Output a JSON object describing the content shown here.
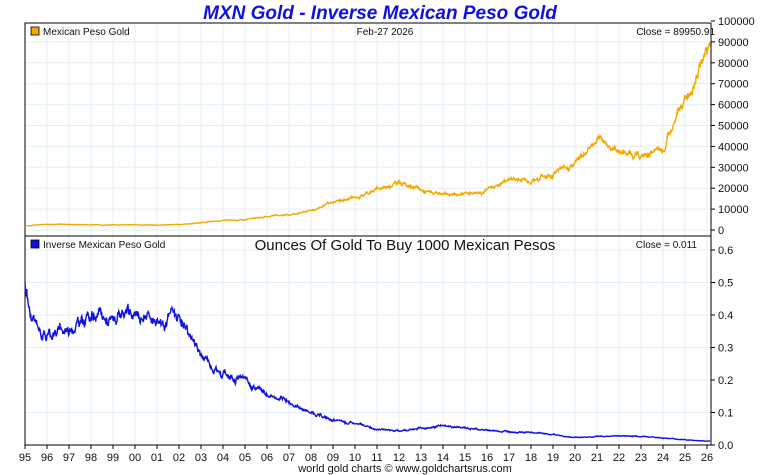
{
  "chart_data": [
    {
      "type": "line",
      "title": "MXN Gold - Inverse Mexican Peso Gold",
      "legend": "Mexican Peso Gold",
      "legend_position": "top-left",
      "date_label": "Feb-27  2026",
      "close_label": "Close = 89950.91",
      "color": "#f5a800",
      "ylim": [
        0,
        100000
      ],
      "yticks": [
        "100000",
        "90000",
        "80000",
        "70000",
        "60000",
        "50000",
        "40000",
        "30000",
        "20000",
        "10000",
        "0"
      ],
      "ytick_values": [
        100000,
        90000,
        80000,
        70000,
        60000,
        50000,
        40000,
        30000,
        20000,
        10000,
        0
      ],
      "grid": true,
      "x": [
        1995,
        1996,
        1997,
        1998,
        1999,
        2000,
        2001,
        2002,
        2003,
        2004,
        2005,
        2006,
        2007,
        2008,
        2009,
        2010,
        2011,
        2012,
        2013,
        2014,
        2015,
        2016,
        2017,
        2018,
        2019,
        2020,
        2021,
        2022,
        2023,
        2024,
        2025,
        2026.15
      ],
      "values": [
        2000,
        2800,
        2700,
        2500,
        2400,
        2500,
        2400,
        2600,
        3500,
        4500,
        4900,
        6500,
        7300,
        9500,
        13000,
        15500,
        19500,
        23000,
        19000,
        16500,
        17500,
        19000,
        24500,
        24000,
        27000,
        32000,
        43000,
        38000,
        35000,
        38000,
        62000,
        89950.91
      ]
    },
    {
      "type": "line",
      "title": "Ounces Of Gold To Buy 1000 Mexican Pesos",
      "legend": "Inverse Mexican Peso Gold",
      "legend_position": "top-left",
      "close_label": "Close = 0.011",
      "color": "#1010e0",
      "ylim": [
        0,
        0.65
      ],
      "yticks": [
        "0.6",
        "0.5",
        "0.4",
        "0.3",
        "0.2",
        "0.1",
        "0.0"
      ],
      "ytick_values": [
        0.6,
        0.5,
        0.4,
        0.3,
        0.2,
        0.1,
        0.0
      ],
      "grid": true,
      "x": [
        1995,
        1995.3,
        1996,
        1997,
        1998,
        1999,
        2000,
        2001,
        2002,
        2003,
        2004,
        2005,
        2006,
        2007,
        2008,
        2009,
        2010,
        2011,
        2012,
        2013,
        2014,
        2015,
        2016,
        2017,
        2018,
        2019,
        2020,
        2021,
        2022,
        2023,
        2024,
        2025,
        2026.15
      ],
      "values": [
        0.5,
        0.38,
        0.34,
        0.36,
        0.4,
        0.38,
        0.4,
        0.39,
        0.4,
        0.28,
        0.22,
        0.2,
        0.155,
        0.13,
        0.1,
        0.075,
        0.065,
        0.05,
        0.043,
        0.052,
        0.058,
        0.053,
        0.045,
        0.042,
        0.038,
        0.032,
        0.023,
        0.026,
        0.028,
        0.027,
        0.022,
        0.016,
        0.011
      ]
    }
  ],
  "xticks": [
    "95",
    "96",
    "97",
    "98",
    "99",
    "00",
    "01",
    "02",
    "03",
    "04",
    "05",
    "06",
    "07",
    "08",
    "09",
    "10",
    "11",
    "12",
    "13",
    "14",
    "15",
    "16",
    "17",
    "18",
    "19",
    "20",
    "21",
    "22",
    "23",
    "24",
    "25",
    "26"
  ],
  "footer": "world gold charts © www.goldchartsrus.com"
}
